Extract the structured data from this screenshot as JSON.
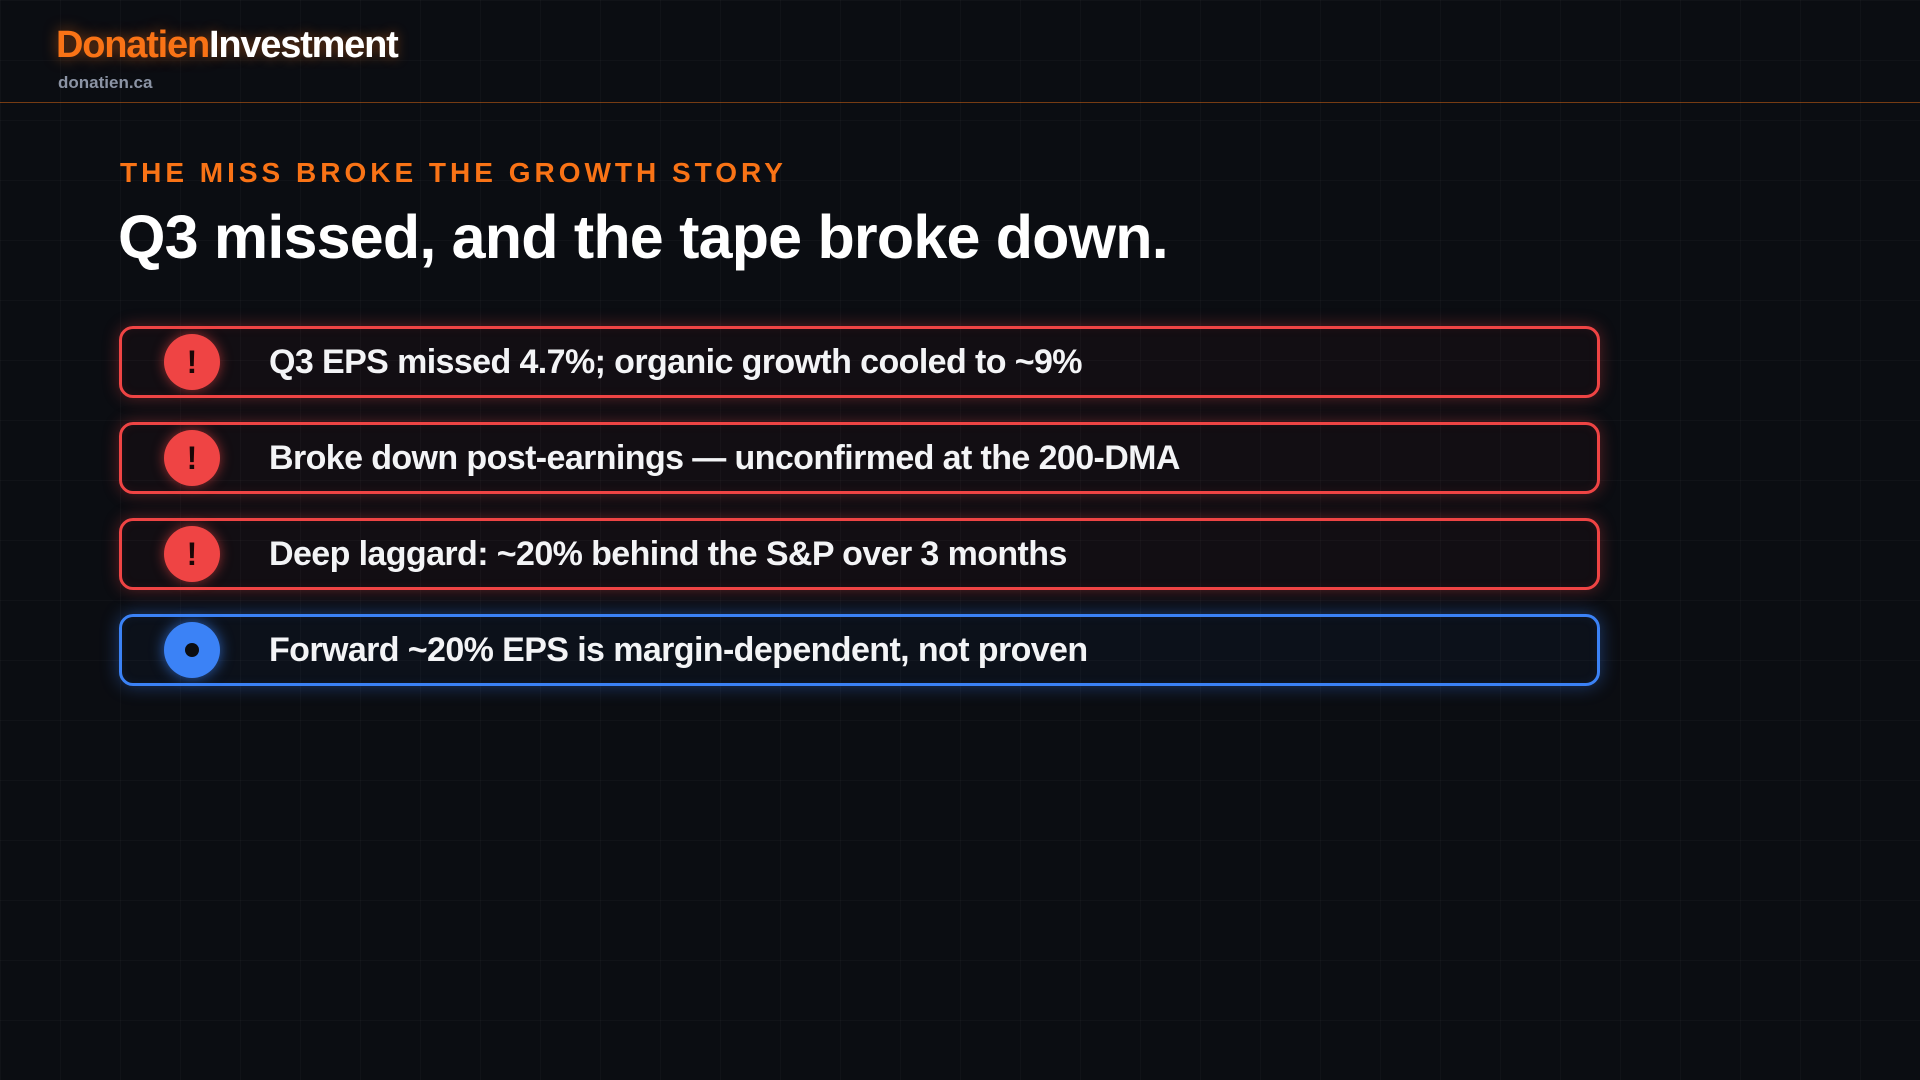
{
  "header": {
    "brand_primary": "Donatien",
    "brand_secondary": "Investment",
    "site": "donatien.ca"
  },
  "slide": {
    "eyebrow": "THE MISS BROKE THE GROWTH STORY",
    "title": "Q3 missed, and the tape broke down."
  },
  "items": [
    {
      "icon": "exclamation-icon",
      "icon_glyph": "!",
      "status": "negative",
      "color": "#ef4444",
      "text": "Q3 EPS missed 4.7%; organic growth cooled to ~9%"
    },
    {
      "icon": "exclamation-icon",
      "icon_glyph": "!",
      "status": "negative",
      "color": "#ef4444",
      "text": "Broke down post-earnings — unconfirmed at the 200-DMA"
    },
    {
      "icon": "exclamation-icon",
      "icon_glyph": "!",
      "status": "negative",
      "color": "#ef4444",
      "text": "Deep laggard: ~20% behind the S&P over 3 months"
    },
    {
      "icon": "dot-icon",
      "icon_glyph": "",
      "status": "neutral",
      "color": "#3b82f6",
      "text": "Forward ~20% EPS is margin-dependent, not proven"
    }
  ],
  "colors": {
    "accent": "#f97316",
    "negative": "#ef4444",
    "neutral": "#3b82f6",
    "background": "#0b0d12"
  }
}
